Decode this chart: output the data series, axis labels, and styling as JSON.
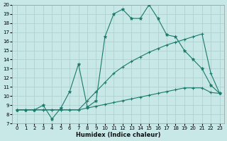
{
  "xlabel": "Humidex (Indice chaleur)",
  "bg_color": "#c8e8e8",
  "grid_color": "#aacccc",
  "line_color": "#1a7a6a",
  "xlim": [
    -0.5,
    23.5
  ],
  "ylim": [
    7,
    20
  ],
  "xticks": [
    0,
    1,
    2,
    3,
    4,
    5,
    6,
    7,
    8,
    9,
    10,
    11,
    12,
    13,
    14,
    15,
    16,
    17,
    18,
    19,
    20,
    21,
    22,
    23
  ],
  "yticks": [
    7,
    8,
    9,
    10,
    11,
    12,
    13,
    14,
    15,
    16,
    17,
    18,
    19,
    20
  ],
  "series1_x": [
    0,
    1,
    2,
    3,
    4,
    5,
    6,
    7,
    8,
    9,
    10,
    11,
    12,
    13,
    14,
    15,
    16,
    17,
    18,
    19,
    20,
    21,
    22,
    23
  ],
  "series1_y": [
    8.5,
    8.5,
    8.5,
    8.5,
    8.5,
    8.5,
    8.5,
    8.5,
    8.7,
    8.9,
    9.1,
    9.3,
    9.5,
    9.7,
    9.9,
    10.1,
    10.3,
    10.5,
    10.7,
    10.9,
    10.9,
    10.9,
    10.4,
    10.3
  ],
  "series2_x": [
    0,
    1,
    2,
    3,
    4,
    5,
    6,
    7,
    8,
    9,
    10,
    11,
    12,
    13,
    14,
    15,
    16,
    17,
    18,
    19,
    20,
    21,
    22,
    23
  ],
  "series2_y": [
    8.5,
    8.5,
    8.5,
    8.5,
    8.5,
    8.5,
    8.5,
    8.5,
    9.5,
    10.5,
    11.5,
    12.5,
    13.2,
    13.8,
    14.3,
    14.8,
    15.2,
    15.6,
    15.9,
    16.2,
    16.5,
    16.8,
    12.5,
    10.3
  ],
  "series3_x": [
    0,
    1,
    2,
    3,
    4,
    5,
    6,
    7,
    8,
    9,
    10,
    11,
    12,
    13,
    14,
    15,
    16,
    17,
    18,
    19,
    20,
    21,
    22,
    23
  ],
  "series3_y": [
    8.5,
    8.5,
    8.5,
    9.0,
    7.5,
    8.7,
    10.5,
    13.5,
    8.8,
    9.5,
    16.5,
    19.0,
    19.5,
    18.5,
    18.5,
    20.0,
    18.5,
    16.7,
    16.5,
    15.0,
    14.0,
    13.0,
    11.2,
    10.3
  ]
}
